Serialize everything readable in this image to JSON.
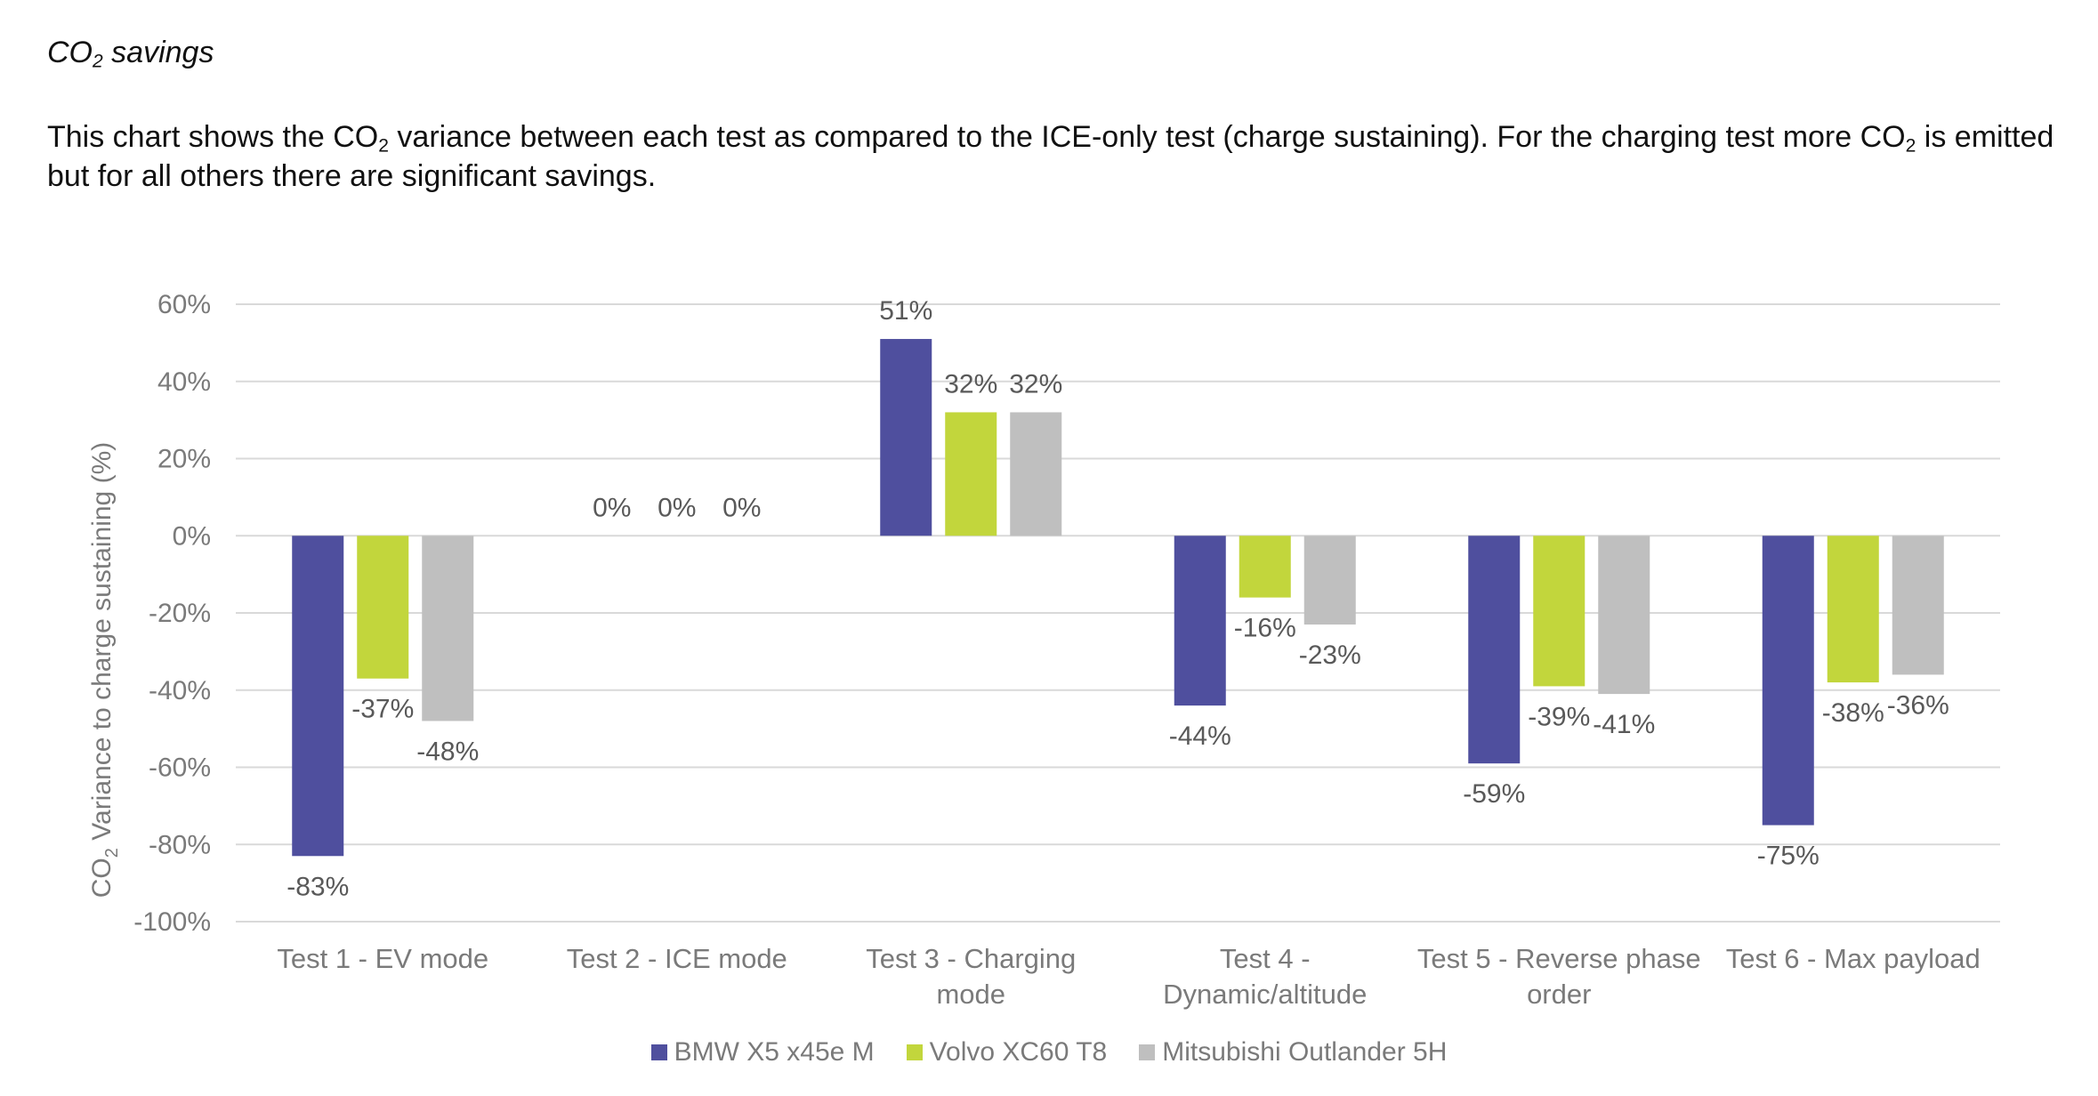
{
  "heading": {
    "prefix": "CO",
    "sub": "2",
    "suffix": " savings"
  },
  "intro": {
    "part1": "This chart shows the CO",
    "sub1": "2",
    "part2": " variance between each test as compared to the ICE-only test (charge sustaining). For the charging test more CO",
    "sub2": "2",
    "part3": " is emitted but for all others there are significant savings."
  },
  "colors": {
    "bmw": "#4f4f9e",
    "volvo": "#c2d63c",
    "mitsubishi": "#bfbfbf",
    "grid": "#d9d9d9",
    "axis_text": "#7a7a7a"
  },
  "chart_data": {
    "type": "bar",
    "title": "",
    "ylabel": "CO2 Variance to charge sustaining (%)",
    "ylabel_parts": {
      "prefix": "CO",
      "sub": "2",
      "suffix": " Variance to charge sustaining (%)"
    },
    "ylim": [
      -100,
      60
    ],
    "yticks": [
      60,
      40,
      20,
      0,
      -20,
      -40,
      -60,
      -80,
      -100
    ],
    "ytick_labels": [
      "60%",
      "40%",
      "20%",
      "0%",
      "-20%",
      "-40%",
      "-60%",
      "-80%",
      "-100%"
    ],
    "categories": [
      [
        "Test 1 - EV mode"
      ],
      [
        "Test 2 - ICE mode"
      ],
      [
        "Test 3 - Charging",
        "mode"
      ],
      [
        "Test 4 -",
        "Dynamic/altitude"
      ],
      [
        "Test 5 - Reverse phase",
        "order"
      ],
      [
        "Test 6 - Max payload"
      ]
    ],
    "series": [
      {
        "name": "BMW X5 x45e M",
        "color_key": "bmw",
        "values": [
          -83,
          0,
          51,
          -44,
          -59,
          -75
        ]
      },
      {
        "name": "Volvo XC60 T8",
        "color_key": "volvo",
        "values": [
          -37,
          0,
          32,
          -16,
          -39,
          -38
        ]
      },
      {
        "name": "Mitsubishi Outlander 5H",
        "color_key": "mitsubishi",
        "values": [
          -48,
          0,
          32,
          -23,
          -41,
          -36
        ]
      }
    ],
    "legend_position": "bottom"
  }
}
